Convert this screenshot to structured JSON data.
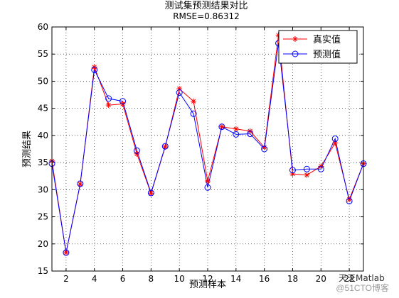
{
  "chart_data": {
    "type": "line",
    "title": "测试集预测结果对比",
    "subtitle": "RMSE=0.86312",
    "xlabel": "预测样本",
    "ylabel": "预测结果",
    "xlim": [
      1,
      23
    ],
    "ylim": [
      15,
      60
    ],
    "x_ticks": [
      2,
      4,
      6,
      8,
      10,
      12,
      14,
      16,
      18,
      20,
      22
    ],
    "y_ticks": [
      15,
      20,
      25,
      30,
      35,
      40,
      45,
      50,
      55,
      60
    ],
    "grid": true,
    "legend_position": "top-right",
    "x": [
      1,
      2,
      3,
      4,
      5,
      6,
      7,
      8,
      9,
      10,
      11,
      12,
      13,
      14,
      15,
      16,
      17,
      18,
      19,
      20,
      21,
      22,
      23
    ],
    "series": [
      {
        "name": "真实值",
        "color": "#ff0000",
        "marker": "star",
        "values": [
          35.3,
          18.4,
          31.0,
          52.6,
          45.6,
          45.8,
          36.6,
          29.3,
          37.9,
          48.6,
          46.3,
          31.6,
          41.6,
          41.2,
          40.8,
          37.8,
          58.5,
          32.9,
          32.7,
          34.3,
          38.6,
          28.2,
          34.8
        ]
      },
      {
        "name": "预测值",
        "color": "#0000ff",
        "marker": "circle",
        "values": [
          34.8,
          18.4,
          31.1,
          52.1,
          46.8,
          46.3,
          37.2,
          29.4,
          38.0,
          47.9,
          44.0,
          30.4,
          41.6,
          40.2,
          40.3,
          37.5,
          57.0,
          33.6,
          33.8,
          33.8,
          39.4,
          27.9,
          34.8
        ]
      }
    ]
  },
  "watermark": "@51CTO博客",
  "watermark_overlay": "天天Matlab"
}
